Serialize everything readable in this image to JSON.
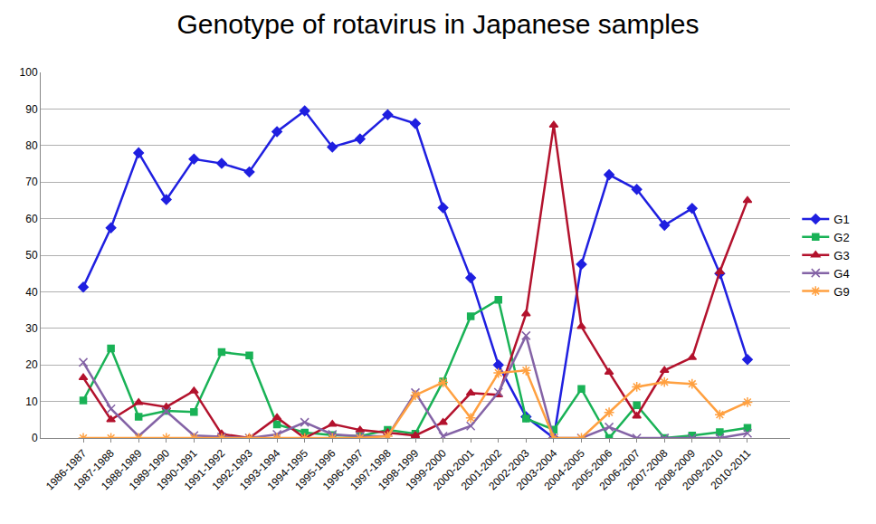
{
  "chart_data": {
    "type": "line",
    "title": "Genotype of rotavirus in Japanese samples",
    "categories": [
      "1986-1987",
      "1987-1988",
      "1988-1989",
      "1989-1990",
      "1990-1991",
      "1991-1992",
      "1992-1993",
      "1993-1994",
      "1994-1995",
      "1995-1996",
      "1996-1997",
      "1997-1998",
      "1998-1999",
      "1999-2000",
      "2000-2001",
      "2001-2002",
      "2002-2003",
      "2003-2004",
      "2004-2005",
      "2005-2006",
      "2006-2007",
      "2007-2008",
      "2008-2009",
      "2009-2010",
      "2010-2011"
    ],
    "series": [
      {
        "name": "G1",
        "color": "#1f1fe0",
        "marker": "diamond",
        "values": [
          41.3,
          57.5,
          78,
          65.2,
          76.3,
          75.1,
          72.8,
          83.8,
          89.5,
          79.6,
          81.8,
          88.4,
          86,
          63,
          43.8,
          20,
          5.8,
          0,
          47.5,
          72,
          68,
          58.2,
          62.8,
          45,
          21.5
        ]
      },
      {
        "name": "G2",
        "color": "#19b256",
        "marker": "square",
        "values": [
          10.3,
          24.5,
          5.8,
          7.4,
          7.1,
          23.5,
          22.6,
          3.7,
          1.5,
          0.8,
          0.5,
          2.2,
          1.2,
          15.5,
          33.3,
          37.8,
          5.3,
          2.3,
          13.4,
          0,
          9,
          0,
          0.7,
          1.6,
          2.8
        ]
      },
      {
        "name": "G3",
        "color": "#b3122d",
        "marker": "triangle-up",
        "values": [
          16.5,
          5,
          9.7,
          8.5,
          12.9,
          1.1,
          0,
          5.6,
          0,
          3.8,
          2.2,
          1.5,
          0.7,
          4.3,
          12.3,
          11.8,
          34,
          85.6,
          30.5,
          18,
          6,
          18.5,
          22,
          45.5,
          65
        ]
      },
      {
        "name": "G4",
        "color": "#8463a6",
        "marker": "x",
        "values": [
          20.7,
          8,
          0.5,
          7.3,
          0.7,
          0.3,
          0,
          1,
          4.3,
          1,
          0.5,
          0.5,
          12.4,
          0.5,
          3.3,
          12.5,
          28,
          0,
          0,
          3,
          0,
          0,
          0,
          0,
          1.3
        ]
      },
      {
        "name": "G9",
        "color": "#ffa040",
        "marker": "asterisk",
        "values": [
          0,
          0,
          0,
          0,
          0,
          0,
          0,
          0,
          0,
          0,
          0,
          0.5,
          11.7,
          15.2,
          5.5,
          17.8,
          18.5,
          0,
          0,
          7,
          14,
          15.3,
          14.8,
          6.4,
          9.8
        ]
      }
    ],
    "ylim": [
      0,
      100
    ],
    "yticks": [
      0,
      10,
      20,
      30,
      40,
      50,
      60,
      70,
      80,
      90,
      100
    ],
    "grid": true,
    "legend": "right"
  }
}
